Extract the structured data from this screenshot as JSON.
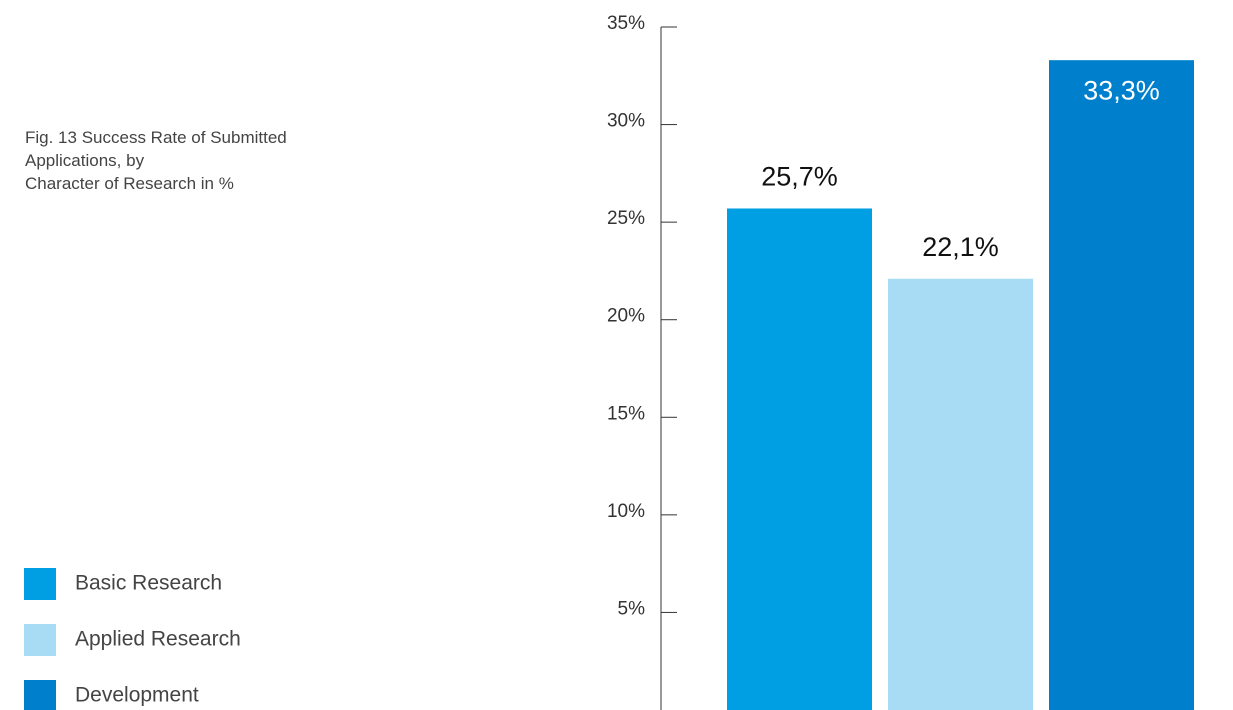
{
  "chart_data": {
    "type": "bar",
    "title": "Fig. 13 Success Rate of Submitted\nApplications, by\nCharacter of Research in %",
    "categories": [
      "Basic Research",
      "Applied Research",
      "Development"
    ],
    "values": [
      25.7,
      22.1,
      33.3
    ],
    "value_labels": [
      "25,7%",
      "22,1%",
      "33,3%"
    ],
    "colors": [
      "#009fe3",
      "#a8dcf5",
      "#0080cc"
    ],
    "ylim": [
      0,
      35
    ],
    "yticks": [
      {
        "value": 5,
        "label": "5%"
      },
      {
        "value": 10,
        "label": "10%"
      },
      {
        "value": 15,
        "label": "15%"
      },
      {
        "value": 20,
        "label": "20%"
      },
      {
        "value": 25,
        "label": "25%"
      },
      {
        "value": 30,
        "label": "30%"
      },
      {
        "value": 35,
        "label": "35%"
      }
    ],
    "legend": "bottom-left"
  }
}
